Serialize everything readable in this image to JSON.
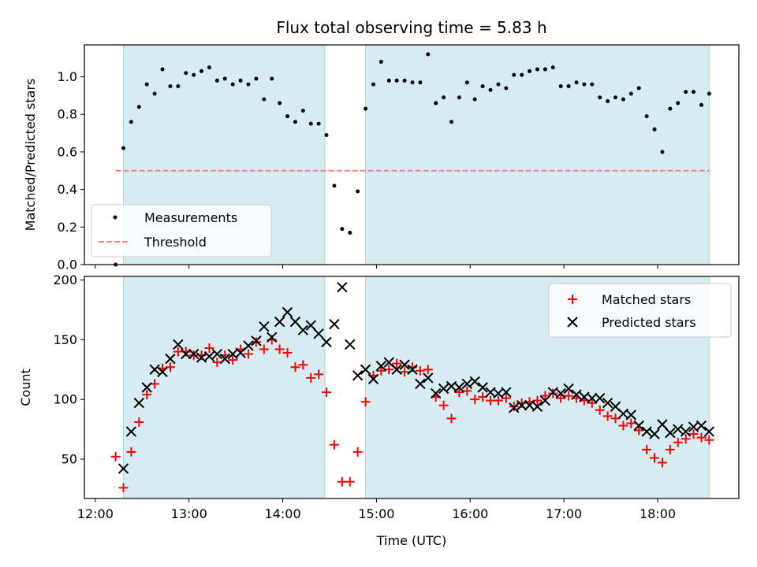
{
  "chart_data": [
    {
      "type": "scatter",
      "title": "Flux total observing time = 5.83 h",
      "xlabel": "",
      "ylabel": "Matched/Predicted stars",
      "ylim": [
        0.0,
        1.17
      ],
      "yticks": [
        "0.0",
        "0.2",
        "0.4",
        "0.6",
        "0.8",
        "1.0"
      ],
      "xlim": [
        "11:53",
        "18:52"
      ],
      "xticks": [
        "12:00",
        "13:00",
        "14:00",
        "15:00",
        "16:00",
        "17:00",
        "18:00"
      ],
      "grid": false,
      "legend_position": "lower-left",
      "shaded_spans": [
        [
          "12:18",
          "14:27"
        ],
        [
          "14:53",
          "18:33"
        ]
      ],
      "threshold": {
        "name": "Threshold",
        "y": 0.5,
        "x_range": [
          "12:13",
          "18:33"
        ],
        "color": "#ff8080"
      },
      "series": [
        {
          "name": "Measurements",
          "color": "#000000",
          "marker": "dot",
          "x": [
            "12:13",
            "12:18",
            "12:23",
            "12:28",
            "12:33",
            "12:38",
            "12:43",
            "12:48",
            "12:53",
            "12:58",
            "13:03",
            "13:08",
            "13:13",
            "13:18",
            "13:23",
            "13:28",
            "13:33",
            "13:38",
            "13:43",
            "13:48",
            "13:53",
            "13:58",
            "14:03",
            "14:08",
            "14:13",
            "14:18",
            "14:23",
            "14:28",
            "14:33",
            "14:38",
            "14:43",
            "14:48",
            "14:53",
            "14:58",
            "15:03",
            "15:08",
            "15:13",
            "15:18",
            "15:23",
            "15:28",
            "15:33",
            "15:38",
            "15:43",
            "15:48",
            "15:53",
            "15:58",
            "16:03",
            "16:08",
            "16:13",
            "16:18",
            "16:23",
            "16:28",
            "16:33",
            "16:38",
            "16:43",
            "16:48",
            "16:53",
            "16:58",
            "17:03",
            "17:08",
            "17:13",
            "17:18",
            "17:23",
            "17:28",
            "17:33",
            "17:38",
            "17:43",
            "17:48",
            "17:53",
            "17:58",
            "18:03",
            "18:08",
            "18:13",
            "18:18",
            "18:23",
            "18:28",
            "18:33"
          ],
          "y": [
            0.0,
            0.62,
            0.76,
            0.84,
            0.96,
            0.91,
            1.04,
            0.95,
            0.95,
            1.02,
            1.01,
            1.03,
            1.05,
            0.98,
            0.99,
            0.96,
            0.98,
            0.96,
            0.99,
            0.88,
            0.99,
            0.86,
            0.79,
            0.76,
            0.82,
            0.75,
            0.75,
            0.69,
            0.42,
            0.19,
            0.17,
            0.39,
            0.83,
            0.96,
            1.08,
            0.98,
            0.98,
            0.98,
            0.97,
            0.97,
            1.12,
            0.86,
            0.89,
            0.76,
            0.89,
            0.97,
            0.88,
            0.95,
            0.93,
            0.96,
            0.94,
            1.01,
            1.01,
            1.03,
            1.04,
            1.04,
            1.05,
            0.95,
            0.95,
            0.97,
            0.96,
            0.96,
            0.89,
            0.87,
            0.89,
            0.88,
            0.91,
            0.94,
            0.79,
            0.72,
            0.6,
            0.83,
            0.86,
            0.92,
            0.92,
            0.85,
            0.91
          ]
        }
      ]
    },
    {
      "type": "scatter",
      "title": "",
      "xlabel": "Time (UTC)",
      "ylabel": "Count",
      "ylim": [
        17,
        203
      ],
      "yticks": [
        "50",
        "100",
        "150",
        "200"
      ],
      "xlim": [
        "11:53",
        "18:52"
      ],
      "xticks": [
        "12:00",
        "13:00",
        "14:00",
        "15:00",
        "16:00",
        "17:00",
        "18:00"
      ],
      "grid": false,
      "legend_position": "upper-right",
      "shaded_spans": [
        [
          "12:18",
          "14:27"
        ],
        [
          "14:53",
          "18:33"
        ]
      ],
      "series": [
        {
          "name": "Matched stars",
          "color": "#ff0000",
          "marker": "plus",
          "x": [
            "12:13",
            "12:18",
            "12:23",
            "12:28",
            "12:33",
            "12:38",
            "12:43",
            "12:48",
            "12:53",
            "12:58",
            "13:03",
            "13:08",
            "13:13",
            "13:18",
            "13:23",
            "13:28",
            "13:33",
            "13:38",
            "13:43",
            "13:48",
            "13:53",
            "13:58",
            "14:03",
            "14:08",
            "14:13",
            "14:18",
            "14:23",
            "14:28",
            "14:33",
            "14:38",
            "14:43",
            "14:48",
            "14:53",
            "14:58",
            "15:03",
            "15:08",
            "15:13",
            "15:18",
            "15:23",
            "15:28",
            "15:33",
            "15:38",
            "15:43",
            "15:48",
            "15:53",
            "15:58",
            "16:03",
            "16:08",
            "16:13",
            "16:18",
            "16:23",
            "16:28",
            "16:33",
            "16:38",
            "16:43",
            "16:48",
            "16:53",
            "16:58",
            "17:03",
            "17:08",
            "17:13",
            "17:18",
            "17:23",
            "17:28",
            "17:33",
            "17:38",
            "17:43",
            "17:48",
            "17:53",
            "17:58",
            "18:03",
            "18:08",
            "18:13",
            "18:18",
            "18:23",
            "18:28",
            "18:33"
          ],
          "y": [
            52,
            26,
            56,
            81,
            104,
            113,
            126,
            127,
            140,
            140,
            137,
            137,
            143,
            131,
            137,
            133,
            142,
            138,
            148,
            142,
            150,
            142,
            139,
            127,
            129,
            118,
            121,
            106,
            62,
            31,
            31,
            56,
            98,
            120,
            124,
            125,
            130,
            123,
            127,
            124,
            125,
            102,
            95,
            84,
            106,
            107,
            100,
            102,
            99,
            99,
            101,
            94,
            97,
            98,
            99,
            103,
            105,
            101,
            103,
            101,
            99,
            97,
            91,
            86,
            84,
            78,
            80,
            74,
            58,
            51,
            47,
            58,
            64,
            67,
            71,
            68,
            66
          ]
        },
        {
          "name": "Predicted stars",
          "color": "#000000",
          "marker": "x",
          "x": [
            "12:18",
            "12:23",
            "12:28",
            "12:33",
            "12:38",
            "12:43",
            "12:48",
            "12:53",
            "12:58",
            "13:03",
            "13:08",
            "13:13",
            "13:18",
            "13:23",
            "13:28",
            "13:33",
            "13:38",
            "13:43",
            "13:48",
            "13:53",
            "13:58",
            "14:03",
            "14:08",
            "14:13",
            "14:18",
            "14:23",
            "14:28",
            "14:33",
            "14:38",
            "14:43",
            "14:48",
            "14:53",
            "14:58",
            "15:03",
            "15:08",
            "15:13",
            "15:18",
            "15:23",
            "15:28",
            "15:33",
            "15:38",
            "15:43",
            "15:48",
            "15:53",
            "15:58",
            "16:03",
            "16:08",
            "16:13",
            "16:18",
            "16:23",
            "16:28",
            "16:33",
            "16:38",
            "16:43",
            "16:48",
            "16:53",
            "16:58",
            "17:03",
            "17:08",
            "17:13",
            "17:18",
            "17:23",
            "17:28",
            "17:33",
            "17:38",
            "17:43",
            "17:48",
            "17:53",
            "17:58",
            "18:03",
            "18:08",
            "18:13",
            "18:18",
            "18:23",
            "18:28",
            "18:33"
          ],
          "y": [
            42,
            73,
            97,
            110,
            125,
            123,
            134,
            146,
            138,
            138,
            135,
            136,
            138,
            134,
            138,
            139,
            145,
            149,
            161,
            152,
            165,
            173,
            165,
            158,
            162,
            155,
            148,
            163,
            194,
            146,
            120,
            125,
            117,
            128,
            131,
            125,
            129,
            125,
            113,
            118,
            105,
            109,
            111,
            110,
            113,
            115,
            110,
            106,
            105,
            106,
            93,
            95,
            95,
            94,
            99,
            106,
            105,
            109,
            104,
            102,
            101,
            101,
            97,
            94,
            88,
            87,
            78,
            73,
            71,
            79,
            72,
            75,
            73,
            77,
            78,
            73
          ]
        }
      ]
    }
  ]
}
